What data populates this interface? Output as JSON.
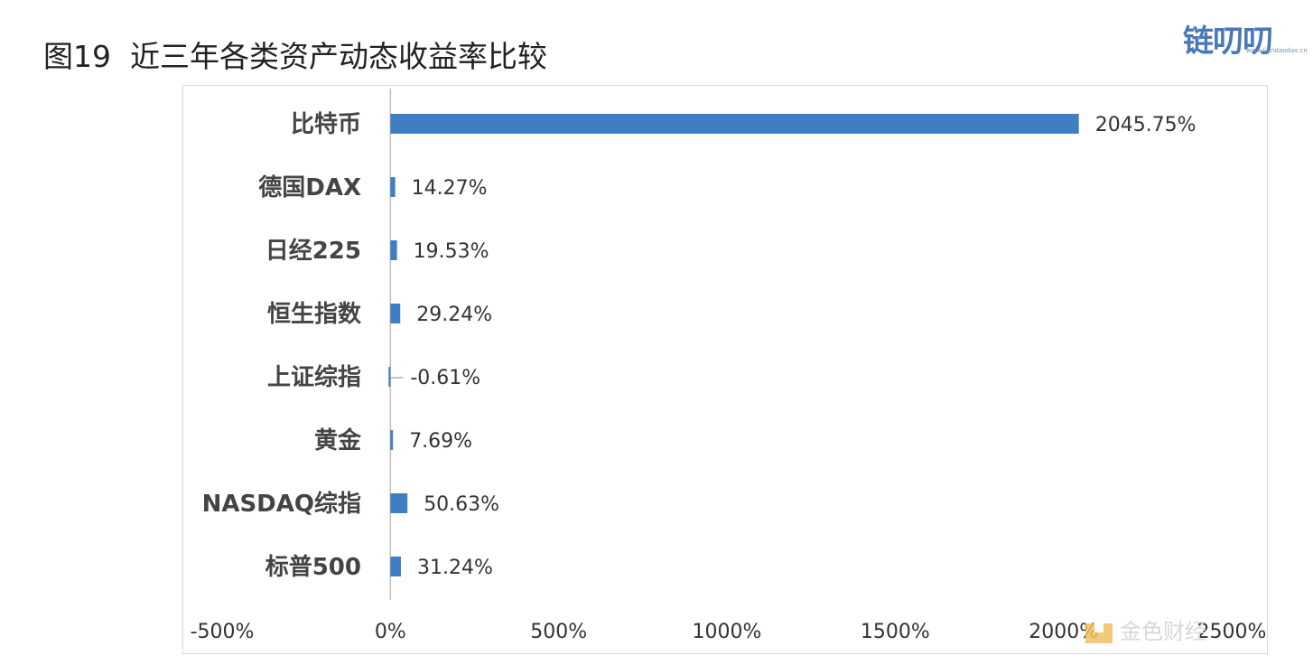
{
  "page": {
    "title": "图19  近三年各类资产动态收益率比较"
  },
  "brand": {
    "name": "链叨叨",
    "url": "www.liandaodao.cn"
  },
  "watermark": {
    "text": "金色财经"
  },
  "colors": {
    "bar": "#3f7fc1",
    "axis": "#bfbfbf",
    "brand": "#4a78b8",
    "watermark_gold": "#f0c060"
  },
  "chart_data": {
    "type": "bar",
    "orientation": "horizontal",
    "title": "",
    "xlabel": "",
    "ylabel": "",
    "categories": [
      "比特币",
      "德国DAX",
      "日经225",
      "恒生指数",
      "上证综指",
      "黄金",
      "NASDAQ综指",
      "标普500"
    ],
    "values": [
      2045.75,
      14.27,
      19.53,
      29.24,
      -0.61,
      7.69,
      50.63,
      31.24
    ],
    "value_labels": [
      "2045.75%",
      "14.27%",
      "19.53%",
      "29.24%",
      "-0.61%",
      "7.69%",
      "50.63%",
      "31.24%"
    ],
    "xlim": [
      -500,
      2500
    ],
    "xticks": [
      -500,
      0,
      500,
      1000,
      1500,
      2000,
      2500
    ],
    "xtick_labels": [
      "-500%",
      "0%",
      "500%",
      "1000%",
      "1500%",
      "2000%",
      "2500%"
    ],
    "grid": false,
    "legend": "none"
  }
}
